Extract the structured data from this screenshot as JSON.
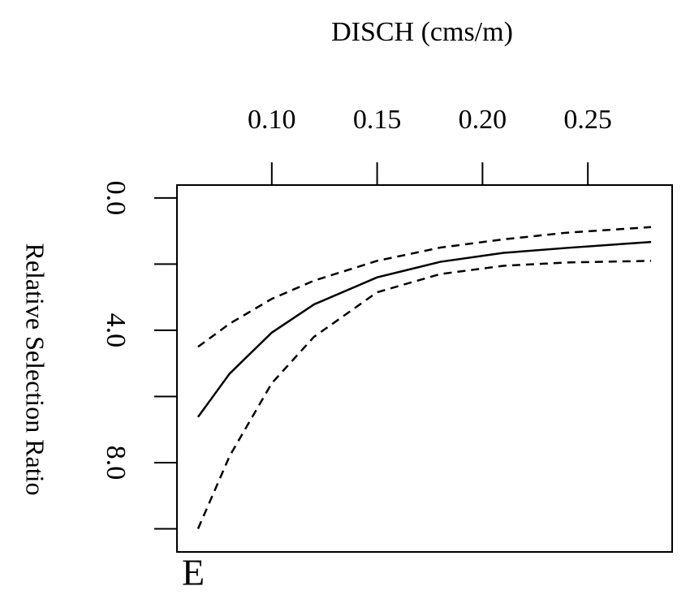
{
  "chart_data": {
    "type": "line",
    "x_label": "DISCH (cms/m)",
    "y_label": "Relative Selection Ratio",
    "panel_label": "E",
    "x": [
      0.065,
      0.08,
      0.1,
      0.12,
      0.15,
      0.18,
      0.21,
      0.24,
      0.28
    ],
    "series": [
      {
        "color": "#000000",
        "dashed": false,
        "values": [
          6.62,
          5.31,
          4.07,
          3.22,
          2.4,
          1.93,
          1.66,
          1.51,
          1.33
        ]
      },
      {
        "color": "#000000",
        "dashed": true,
        "values": [
          4.5,
          3.8,
          3.05,
          2.5,
          1.9,
          1.5,
          1.25,
          1.05,
          0.88
        ]
      },
      {
        "color": "#000000",
        "dashed": true,
        "values": [
          10.0,
          7.8,
          5.6,
          4.2,
          2.85,
          2.3,
          2.05,
          1.95,
          1.9
        ]
      }
    ],
    "xlim": [
      0.055,
      0.29
    ],
    "xticks": [
      {
        "value": 0.1,
        "label": "0.10"
      },
      0.15,
      {
        "value": 0.2,
        "label": "0.20"
      },
      0.25
    ],
    "x_axis_position": "top",
    "y_inverted": true,
    "ylim": [
      -0.39,
      10.7
    ],
    "yticks": [
      {
        "value": 0,
        "label": "0.0"
      },
      {
        "value": 4,
        "label": "4.0"
      },
      {
        "value": 8,
        "label": "8.0"
      }
    ],
    "yticks_minor": [
      2,
      6,
      10
    ]
  }
}
